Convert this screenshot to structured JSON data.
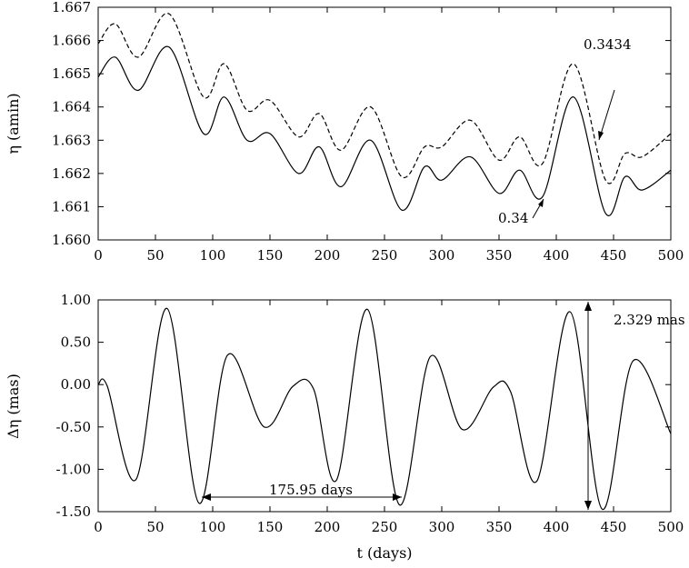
{
  "chart_data": [
    {
      "type": "line",
      "xlabel": "",
      "ylabel": "η (amin)",
      "xlim": [
        0,
        500
      ],
      "ylim": [
        1.66,
        1.667
      ],
      "xticks": [
        "0",
        "50",
        "100",
        "150",
        "200",
        "250",
        "300",
        "350",
        "400",
        "450",
        "500"
      ],
      "yticks": [
        "1.660",
        "1.661",
        "1.662",
        "1.663",
        "1.664",
        "1.665",
        "1.666",
        "1.667"
      ],
      "series": [
        {
          "name": "0.3434",
          "style": "dashed",
          "x": [
            0,
            15,
            35,
            62,
            92,
            110,
            130,
            150,
            175,
            193,
            212,
            238,
            265,
            285,
            300,
            325,
            350,
            368,
            388,
            415,
            443,
            460,
            475,
            500
          ],
          "y": [
            1.6659,
            1.6665,
            1.6655,
            1.6668,
            1.6643,
            1.6653,
            1.6639,
            1.6642,
            1.6631,
            1.6638,
            1.6627,
            1.664,
            1.6619,
            1.6628,
            1.6628,
            1.6636,
            1.6624,
            1.6631,
            1.6623,
            1.6653,
            1.6618,
            1.6626,
            1.6625,
            1.6632
          ]
        },
        {
          "name": "0.34",
          "style": "solid",
          "x": [
            0,
            15,
            35,
            62,
            92,
            110,
            130,
            150,
            175,
            193,
            212,
            238,
            265,
            285,
            300,
            325,
            350,
            368,
            388,
            415,
            443,
            460,
            475,
            500
          ],
          "y": [
            1.6649,
            1.6655,
            1.6645,
            1.6658,
            1.6632,
            1.6643,
            1.663,
            1.6632,
            1.662,
            1.6628,
            1.6616,
            1.663,
            1.6609,
            1.6622,
            1.6618,
            1.6625,
            1.6614,
            1.6621,
            1.6613,
            1.6643,
            1.6608,
            1.6619,
            1.6615,
            1.6621
          ]
        }
      ],
      "annotations": [
        "0.3434",
        "0.34"
      ]
    },
    {
      "type": "line",
      "xlabel": "t (days)",
      "ylabel": "Δη (mas)",
      "xlim": [
        0,
        500
      ],
      "ylim": [
        -1.5,
        1.0
      ],
      "xticks": [
        "0",
        "50",
        "100",
        "150",
        "200",
        "250",
        "300",
        "350",
        "400",
        "450",
        "500"
      ],
      "yticks": [
        "1.00",
        "0.50",
        "0.00",
        "-0.50",
        "-1.00",
        "-1.50"
      ],
      "series": [
        {
          "name": "",
          "style": "solid",
          "x": [
            0,
            8,
            33,
            60,
            88,
            113,
            145,
            170,
            188,
            208,
            235,
            263,
            290,
            318,
            345,
            360,
            383,
            412,
            440,
            467,
            500
          ],
          "y": [
            0.0,
            -0.02,
            -1.12,
            0.9,
            -1.4,
            0.35,
            -0.5,
            -0.02,
            -0.05,
            -1.13,
            0.89,
            -1.42,
            0.33,
            -0.53,
            -0.03,
            -0.08,
            -1.14,
            0.86,
            -1.47,
            0.28,
            -0.58
          ]
        }
      ],
      "annotations": [
        "175.95 days",
        "2.329 mas"
      ]
    }
  ]
}
